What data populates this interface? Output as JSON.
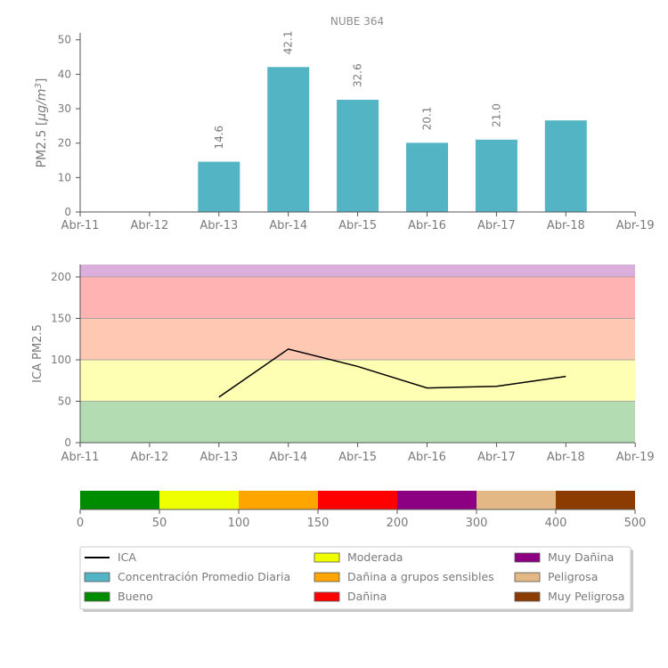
{
  "colors": {
    "bar": "#53b5c4",
    "axis": "#555555",
    "text": "#7a7a7a",
    "title": "#8e8e8e",
    "ica_line": "#000000",
    "band_bueno": "#b3dcb3",
    "band_moderada": "#ffffb3",
    "band_sensibles": "#ffc8b3",
    "band_danina": "#ffb3b3",
    "band_muy_danina": "#dbaedb"
  },
  "chart_data": [
    {
      "type": "bar",
      "title": "NUBE 364",
      "ylabel": "PM2.5 [μg/m³]",
      "ylabel_main": "PM2.5 [",
      "ylabel_unit": "μg/m",
      "ylabel_exp": "3",
      "ylabel_close": "]",
      "xlabel": "",
      "x_ticks": [
        "Abr-11",
        "Abr-12",
        "Abr-13",
        "Abr-14",
        "Abr-15",
        "Abr-16",
        "Abr-17",
        "Abr-18",
        "Abr-19"
      ],
      "y_ticks": [
        0,
        10,
        20,
        30,
        40,
        50
      ],
      "ylim": [
        0,
        52
      ],
      "categories": [
        "Abr-13",
        "Abr-14",
        "Abr-15",
        "Abr-16",
        "Abr-17",
        "Abr-18"
      ],
      "values": [
        14.6,
        42.1,
        32.6,
        20.1,
        21.0,
        26.6
      ],
      "data_labels": [
        "14.6",
        "42.1",
        "32.6",
        "20.1",
        "21.0",
        ""
      ]
    },
    {
      "type": "line",
      "ylabel": "ICA PM2.5",
      "x_ticks": [
        "Abr-11",
        "Abr-12",
        "Abr-13",
        "Abr-14",
        "Abr-15",
        "Abr-16",
        "Abr-17",
        "Abr-18",
        "Abr-19"
      ],
      "y_ticks": [
        0,
        50,
        100,
        150,
        200
      ],
      "ylim": [
        0,
        215
      ],
      "series": [
        {
          "name": "ICA",
          "x": [
            "Abr-13",
            "Abr-14",
            "Abr-15",
            "Abr-16",
            "Abr-17",
            "Abr-18"
          ],
          "values": [
            55,
            113,
            92,
            66,
            68,
            80
          ]
        }
      ],
      "bands": [
        {
          "from": 0,
          "to": 50,
          "color": "#b3dcb3"
        },
        {
          "from": 50,
          "to": 100,
          "color": "#ffffb3"
        },
        {
          "from": 100,
          "to": 150,
          "color": "#ffc8b3"
        },
        {
          "from": 150,
          "to": 200,
          "color": "#ffb3b3"
        },
        {
          "from": 200,
          "to": 215,
          "color": "#dbaedb"
        }
      ]
    }
  ],
  "scale": {
    "segments": [
      {
        "color": "#008c00",
        "label": "Bueno"
      },
      {
        "color": "#f0ff00",
        "label": "Moderada"
      },
      {
        "color": "#ffa500",
        "label": "Dañina a grupos sensibles"
      },
      {
        "color": "#ff0000",
        "label": "Dañina"
      },
      {
        "color": "#8c0082",
        "label": "Muy Dañina"
      },
      {
        "color": "#e3b885",
        "label": "Peligrosa"
      },
      {
        "color": "#8c3c00",
        "label": "Muy Peligrosa"
      }
    ],
    "ticks": [
      "0",
      "50",
      "100",
      "150",
      "200",
      "300",
      "400",
      "500"
    ]
  },
  "legend": {
    "items": [
      {
        "type": "line",
        "color": "#000000",
        "label": "ICA"
      },
      {
        "type": "box",
        "color": "#53b5c4",
        "label": "Concentración Promedio Diaria"
      },
      {
        "type": "box",
        "color": "#008c00",
        "label": "Bueno"
      },
      {
        "type": "box",
        "color": "#f0ff00",
        "label": "Moderada"
      },
      {
        "type": "box",
        "color": "#ffa500",
        "label": "Dañina a grupos sensibles"
      },
      {
        "type": "box",
        "color": "#ff0000",
        "label": "Dañina"
      },
      {
        "type": "box",
        "color": "#8c0082",
        "label": "Muy Dañina"
      },
      {
        "type": "box",
        "color": "#e3b885",
        "label": "Peligrosa"
      },
      {
        "type": "box",
        "color": "#8c3c00",
        "label": "Muy Peligrosa"
      }
    ]
  }
}
